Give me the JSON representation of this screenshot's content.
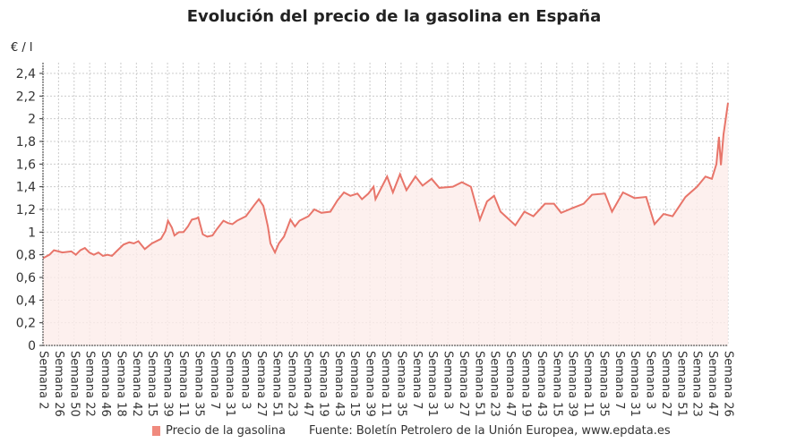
{
  "chart_data": {
    "type": "area",
    "title": "Evolución del precio de la gasolina en España",
    "ylabel": "€ / l",
    "xlabel": "",
    "ylim": [
      0,
      2.4
    ],
    "xlim": [
      0,
      1063
    ],
    "yticks": [
      "0",
      "0,2",
      "0,4",
      "0,6",
      "0,8",
      "1",
      "1,2",
      "1,4",
      "1,6",
      "1,8",
      "2",
      "2,2",
      "2,4"
    ],
    "xticks": [
      "Semana 2",
      "Semana 26",
      "Semana 50",
      "Semana 22",
      "Semana 46",
      "Semana 18",
      "Semana 42",
      "Semana 15",
      "Semana 39",
      "Semana 11",
      "Semana 35",
      "Semana 7",
      "Semana 31",
      "Semana 3",
      "Semana 27",
      "Semana 51",
      "Semana 23",
      "Semana 47",
      "Semana 19",
      "Semana 43",
      "Semana 15",
      "Semana 39",
      "Semana 11",
      "Semana 35",
      "Semana 7",
      "Semana 31",
      "Semana 3",
      "Semana 27",
      "Semana 51",
      "Semana 23",
      "Semana 47",
      "Semana 19",
      "Semana 43",
      "Semana 15",
      "Semana 39",
      "Semana 11",
      "Semana 35",
      "Semana 7",
      "Semana 31",
      "Semana 3",
      "Semana 27",
      "Semana 51",
      "Semana 23",
      "Semana 47",
      "Semana 26"
    ],
    "grid": true,
    "legend_position": "bottom",
    "color": "#e8756a",
    "series": [
      {
        "name": "Precio de la gasolina",
        "points": [
          [
            0,
            0.77
          ],
          [
            10,
            0.8
          ],
          [
            17,
            0.84
          ],
          [
            24,
            0.83
          ],
          [
            30,
            0.82
          ],
          [
            44,
            0.83
          ],
          [
            51,
            0.8
          ],
          [
            58,
            0.84
          ],
          [
            65,
            0.86
          ],
          [
            72,
            0.82
          ],
          [
            79,
            0.8
          ],
          [
            86,
            0.82
          ],
          [
            93,
            0.79
          ],
          [
            100,
            0.8
          ],
          [
            107,
            0.79
          ],
          [
            114,
            0.83
          ],
          [
            125,
            0.89
          ],
          [
            134,
            0.91
          ],
          [
            141,
            0.9
          ],
          [
            148,
            0.92
          ],
          [
            158,
            0.85
          ],
          [
            169,
            0.9
          ],
          [
            183,
            0.94
          ],
          [
            190,
            1.01
          ],
          [
            194,
            1.1
          ],
          [
            200,
            1.04
          ],
          [
            204,
            0.97
          ],
          [
            211,
            1.0
          ],
          [
            218,
            1.0
          ],
          [
            225,
            1.05
          ],
          [
            231,
            1.11
          ],
          [
            238,
            1.12
          ],
          [
            241,
            1.13
          ],
          [
            248,
            0.98
          ],
          [
            255,
            0.96
          ],
          [
            263,
            0.97
          ],
          [
            269,
            1.02
          ],
          [
            280,
            1.1
          ],
          [
            287,
            1.08
          ],
          [
            294,
            1.07
          ],
          [
            301,
            1.1
          ],
          [
            308,
            1.12
          ],
          [
            315,
            1.14
          ],
          [
            328,
            1.24
          ],
          [
            335,
            1.29
          ],
          [
            342,
            1.23
          ],
          [
            349,
            1.05
          ],
          [
            353,
            0.9
          ],
          [
            360,
            0.82
          ],
          [
            366,
            0.9
          ],
          [
            374,
            0.96
          ],
          [
            384,
            1.11
          ],
          [
            391,
            1.05
          ],
          [
            398,
            1.1
          ],
          [
            405,
            1.12
          ],
          [
            412,
            1.14
          ],
          [
            421,
            1.2
          ],
          [
            432,
            1.17
          ],
          [
            446,
            1.18
          ],
          [
            457,
            1.28
          ],
          [
            467,
            1.35
          ],
          [
            477,
            1.32
          ],
          [
            488,
            1.34
          ],
          [
            495,
            1.29
          ],
          [
            505,
            1.34
          ],
          [
            513,
            1.4
          ],
          [
            516,
            1.29
          ],
          [
            534,
            1.49
          ],
          [
            543,
            1.35
          ],
          [
            554,
            1.51
          ],
          [
            564,
            1.37
          ],
          [
            578,
            1.49
          ],
          [
            589,
            1.41
          ],
          [
            603,
            1.47
          ],
          [
            615,
            1.39
          ],
          [
            636,
            1.4
          ],
          [
            650,
            1.44
          ],
          [
            664,
            1.4
          ],
          [
            678,
            1.11
          ],
          [
            689,
            1.27
          ],
          [
            700,
            1.32
          ],
          [
            710,
            1.18
          ],
          [
            733,
            1.06
          ],
          [
            747,
            1.18
          ],
          [
            761,
            1.14
          ],
          [
            779,
            1.25
          ],
          [
            793,
            1.25
          ],
          [
            804,
            1.17
          ],
          [
            821,
            1.21
          ],
          [
            839,
            1.25
          ],
          [
            852,
            1.33
          ],
          [
            872,
            1.34
          ],
          [
            883,
            1.18
          ],
          [
            900,
            1.35
          ],
          [
            918,
            1.3
          ],
          [
            936,
            1.31
          ],
          [
            949,
            1.07
          ],
          [
            963,
            1.16
          ],
          [
            977,
            1.14
          ],
          [
            997,
            1.31
          ],
          [
            1015,
            1.4
          ],
          [
            1028,
            1.49
          ],
          [
            1038,
            1.47
          ],
          [
            1045,
            1.6
          ],
          [
            1049,
            1.84
          ],
          [
            1052,
            1.59
          ],
          [
            1056,
            1.86
          ],
          [
            1063,
            2.14
          ]
        ]
      }
    ],
    "source": "Fuente: Boletín Petrolero de la Unión Europea, www.epdata.es"
  }
}
